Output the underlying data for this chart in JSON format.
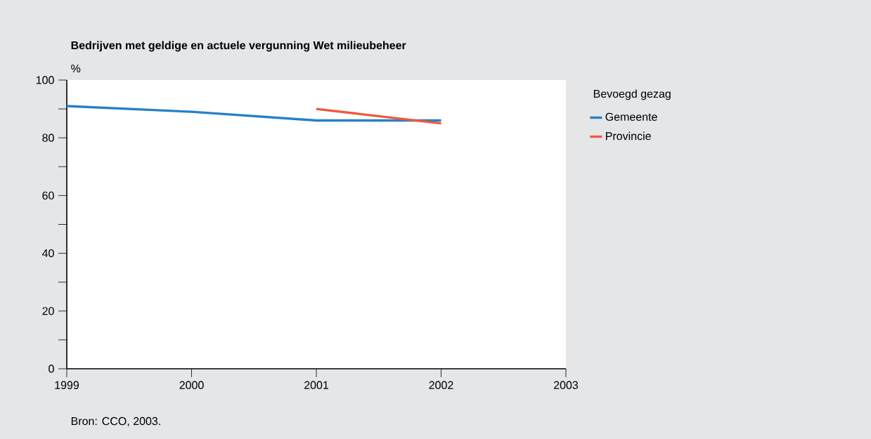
{
  "chart_data": {
    "type": "line",
    "title": "Bedrijven met geldige en actuele vergunning Wet milieubeheer",
    "ylabel": "%",
    "legend_title": "Bevoegd gezag",
    "x": [
      1999,
      2000,
      2001,
      2002
    ],
    "series": [
      {
        "name": "Gemeente",
        "color": "#2681c8",
        "values": [
          91,
          89,
          86,
          86
        ]
      },
      {
        "name": "Provincie",
        "color": "#ee5a3c",
        "x": [
          2001,
          2002
        ],
        "values": [
          90,
          85
        ]
      }
    ],
    "xlim": [
      1999,
      2003
    ],
    "xticks": [
      1999,
      2000,
      2001,
      2002,
      2003
    ],
    "ylim": [
      0,
      100
    ],
    "yticks": [
      0,
      {
        "value": 10,
        "label": null
      },
      20,
      {
        "value": 30,
        "label": null
      },
      40,
      {
        "value": 50,
        "label": null
      },
      60,
      {
        "value": 70,
        "label": null
      },
      80,
      {
        "value": 90,
        "label": null
      },
      100
    ],
    "legend": "top right",
    "marker": "none",
    "line_style": "solid",
    "annotations": [
      "Bron: CCO, 2003."
    ]
  }
}
